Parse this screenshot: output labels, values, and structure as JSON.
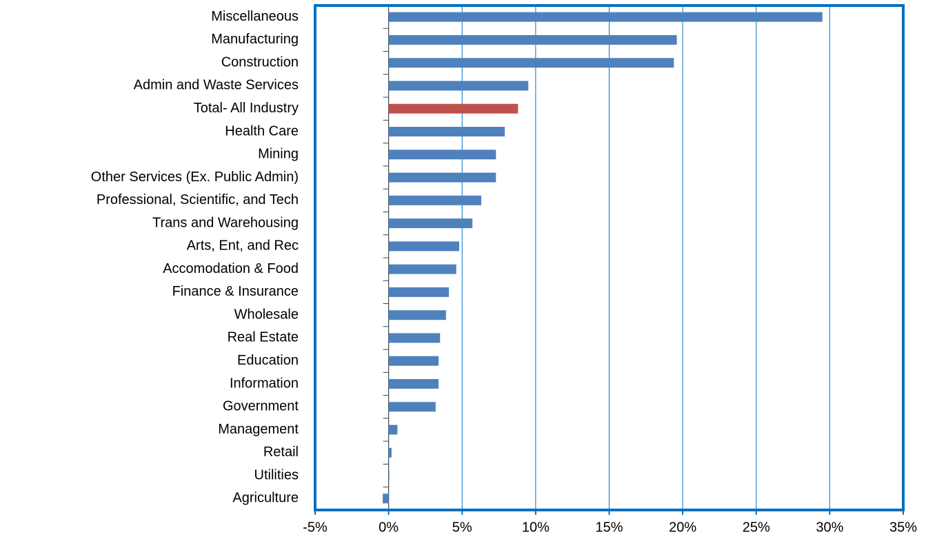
{
  "chart_data": {
    "type": "bar",
    "orientation": "horizontal",
    "categories": [
      "Miscellaneous",
      "Manufacturing",
      "Construction",
      "Admin and Waste Services",
      "Total- All Industry",
      "Health Care",
      "Mining",
      "Other Services (Ex. Public Admin)",
      "Professional, Scientific, and Tech",
      "Trans and Warehousing",
      "Arts, Ent, and Rec",
      "Accomodation & Food",
      "Finance & Insurance",
      "Wholesale",
      "Real Estate",
      "Education",
      "Information",
      "Government",
      "Management",
      "Retail",
      "Utilities",
      "Agriculture"
    ],
    "values": [
      29.5,
      19.6,
      19.4,
      9.5,
      8.8,
      7.9,
      7.3,
      7.3,
      6.3,
      5.7,
      4.8,
      4.6,
      4.1,
      3.9,
      3.5,
      3.4,
      3.4,
      3.2,
      0.6,
      0.2,
      0.05,
      -0.4
    ],
    "colors": [
      "#4f81bd",
      "#4f81bd",
      "#4f81bd",
      "#4f81bd",
      "#c0504d",
      "#4f81bd",
      "#4f81bd",
      "#4f81bd",
      "#4f81bd",
      "#4f81bd",
      "#4f81bd",
      "#4f81bd",
      "#4f81bd",
      "#4f81bd",
      "#4f81bd",
      "#4f81bd",
      "#4f81bd",
      "#4f81bd",
      "#4f81bd",
      "#4f81bd",
      "#4f81bd",
      "#4f81bd"
    ],
    "xlim": [
      -5,
      35
    ],
    "xticks": [
      {
        "value": -5,
        "label": "-5%"
      },
      {
        "value": 0,
        "label": "0%"
      },
      {
        "value": 5,
        "label": "5%"
      },
      {
        "value": 10,
        "label": "10%"
      },
      {
        "value": 15,
        "label": "15%"
      },
      {
        "value": 20,
        "label": "20%"
      },
      {
        "value": 25,
        "label": "25%"
      },
      {
        "value": 30,
        "label": "30%"
      },
      {
        "value": 35,
        "label": "35%"
      }
    ],
    "grid": true
  }
}
